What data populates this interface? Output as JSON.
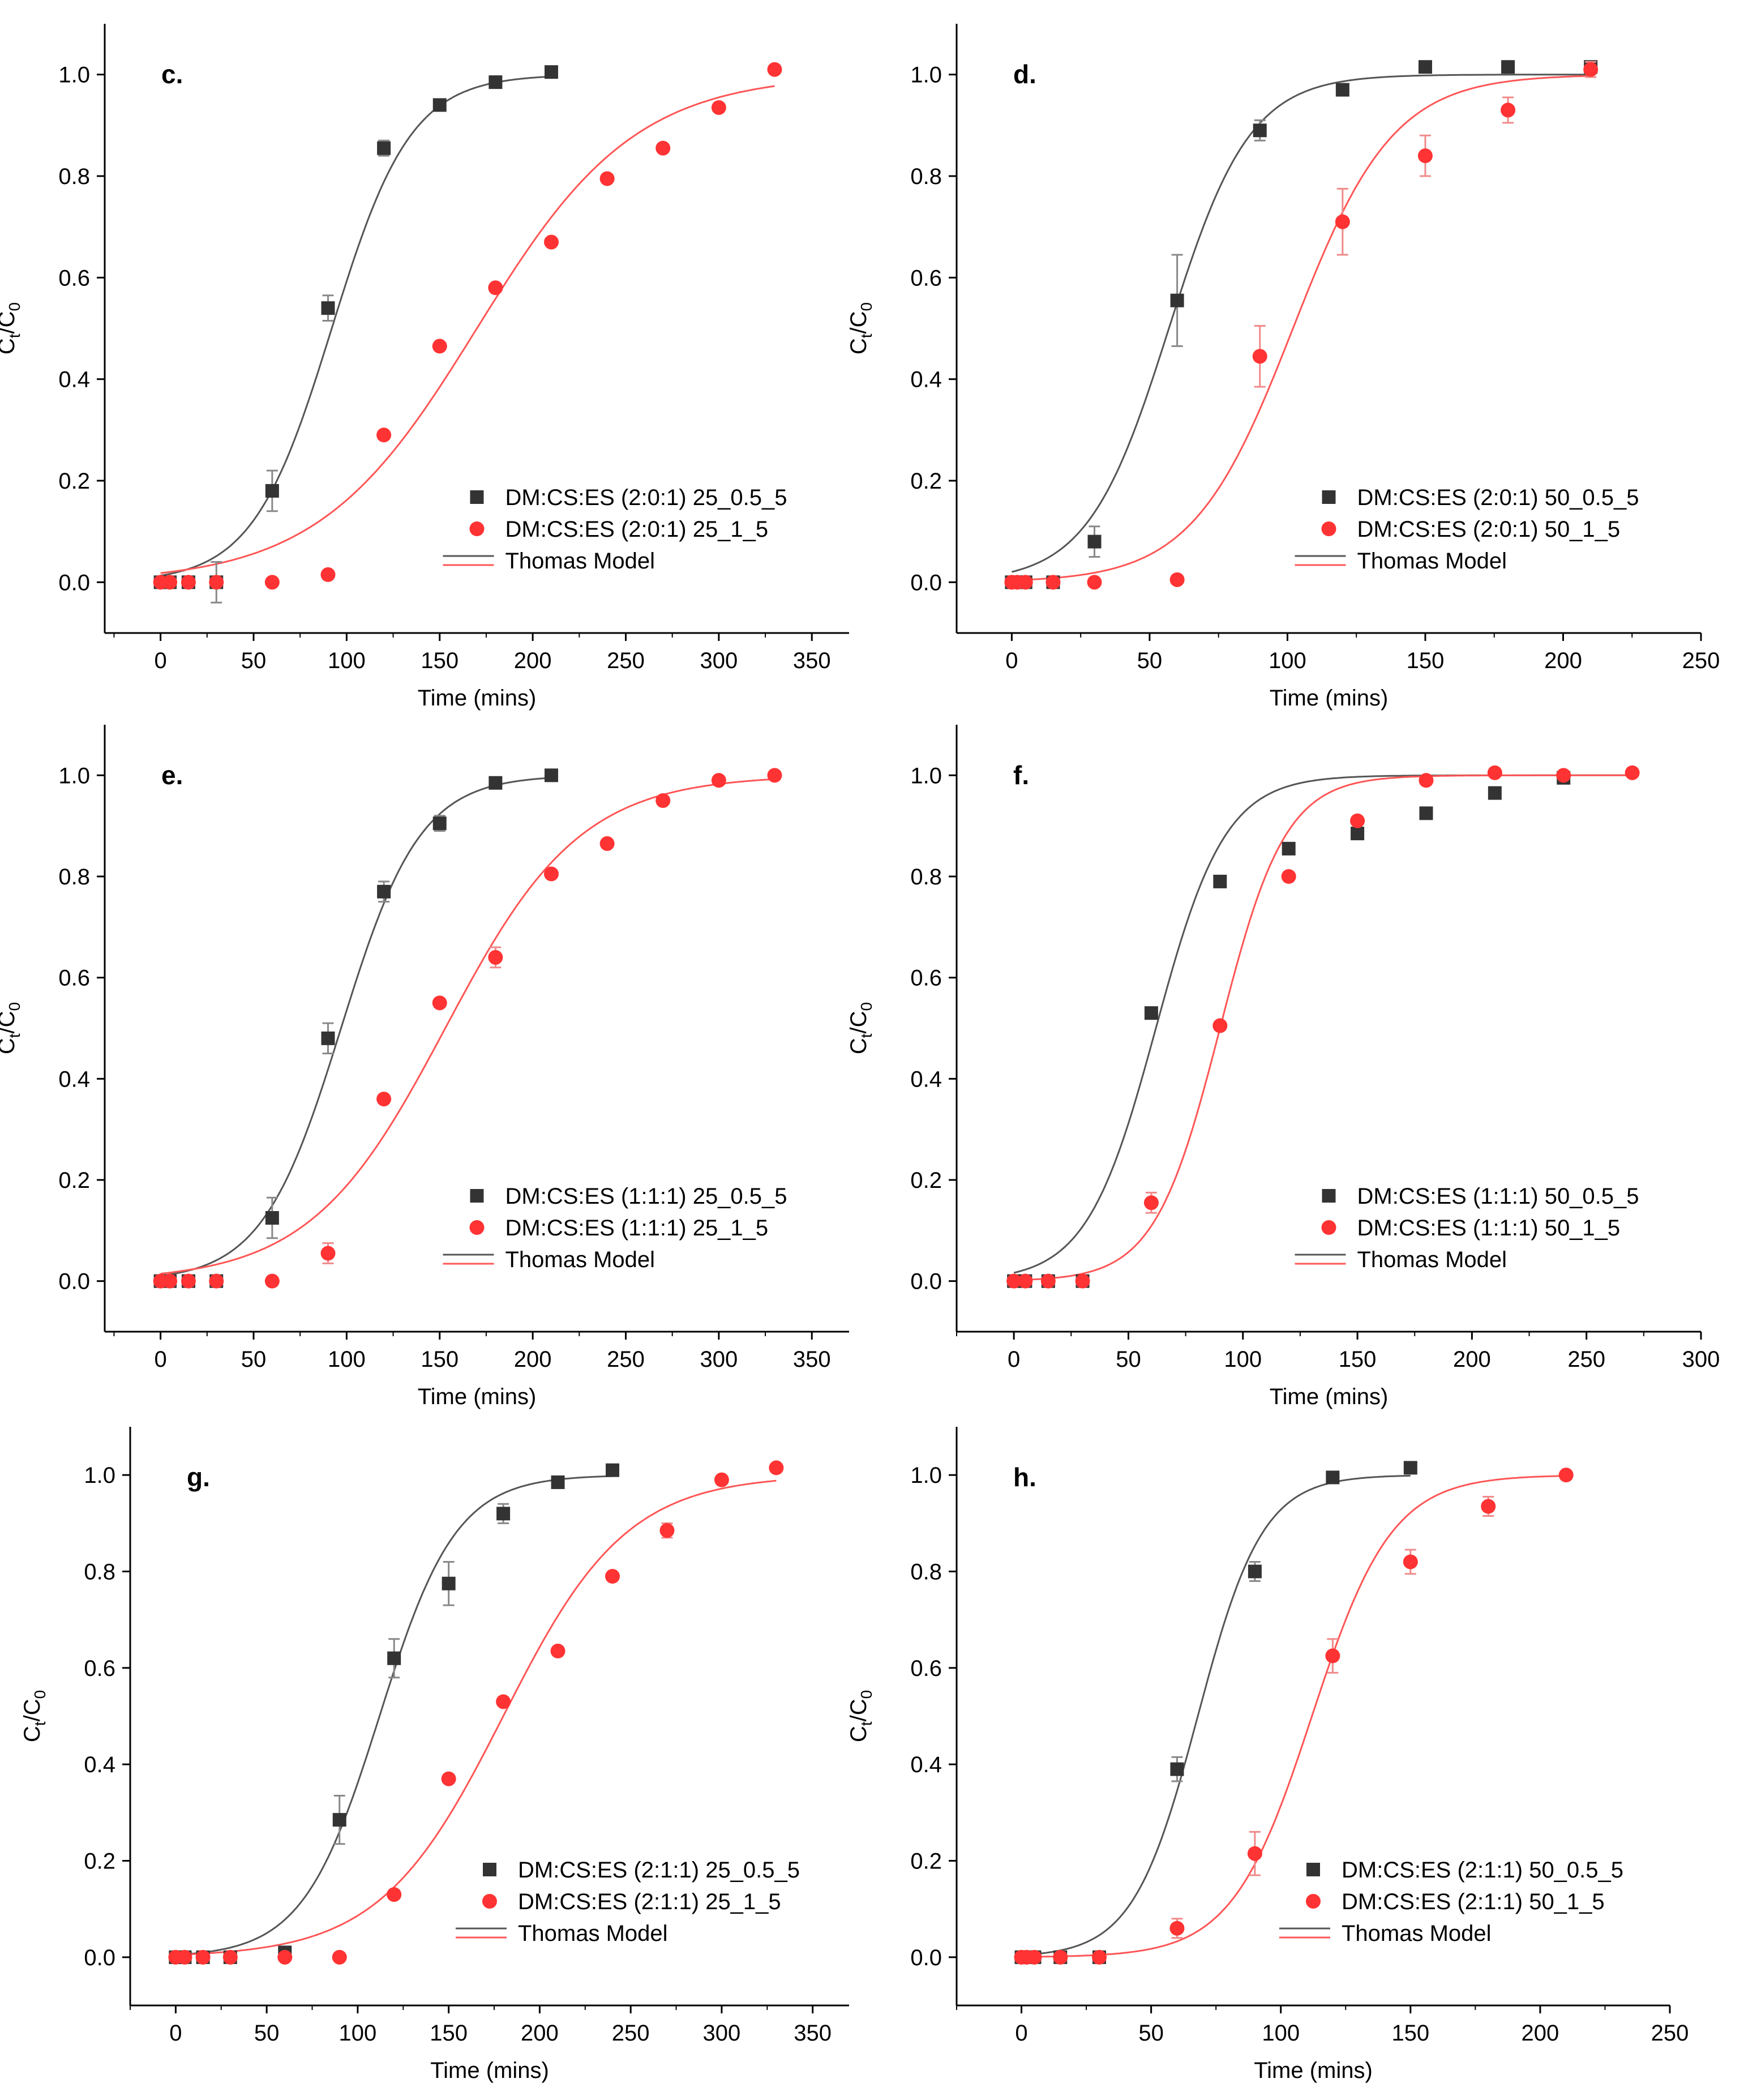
{
  "colors": {
    "black_series": "#333333",
    "red_series": "#ff3333",
    "black_fit": "#555555",
    "red_fit": "#ff5555",
    "error_black": "#888888",
    "error_red": "#f08a8a"
  },
  "shared": {
    "ylabel_main": "C",
    "ylabel_sub1": "t",
    "ylabel_sep": "/C",
    "ylabel_sub2": "0",
    "xlabel": "Time (mins)",
    "yticks": [
      "0.0",
      "0.2",
      "0.4",
      "0.6",
      "0.8",
      "1.0"
    ]
  },
  "chart_data": [
    {
      "type": "scatter",
      "panel": "c.",
      "title": "c.",
      "xlabel": "Time (mins)",
      "ylabel": "Ct/C0",
      "xlim": [
        -30,
        370
      ],
      "ylim": [
        -0.1,
        1.1
      ],
      "xticks": [
        0,
        50,
        100,
        150,
        200,
        250,
        300,
        350
      ],
      "yticks": [
        0,
        0.2,
        0.4,
        0.6,
        0.8,
        1.0
      ],
      "series": [
        {
          "name": "DM:CS:ES (2:0:1) 25_0.5_5",
          "marker": "square",
          "color": "#333333",
          "x": [
            0,
            5,
            15,
            30,
            60,
            90,
            120,
            150,
            180,
            210
          ],
          "y": [
            0,
            0,
            0,
            0,
            0.18,
            0.54,
            0.855,
            0.94,
            0.985,
            1.005
          ],
          "err": [
            0,
            0,
            0,
            0.04,
            0.04,
            0.025,
            0.015,
            0,
            0,
            0
          ]
        },
        {
          "name": "DM:CS:ES (2:0:1) 25_1_5",
          "marker": "circle",
          "color": "#ff3333",
          "x": [
            0,
            5,
            15,
            30,
            60,
            90,
            120,
            150,
            180,
            210,
            240,
            270,
            300,
            330
          ],
          "y": [
            0,
            0,
            0,
            0,
            0,
            0.015,
            0.29,
            0.465,
            0.58,
            0.67,
            0.795,
            0.855,
            0.935,
            1.01
          ],
          "err": [
            0,
            0,
            0,
            0,
            0,
            0,
            0,
            0,
            0,
            0,
            0,
            0,
            0,
            0
          ]
        }
      ],
      "fits": [
        {
          "name": "Thomas Model",
          "color": "#555555",
          "t50": 92,
          "k": 0.047,
          "x_end": 210
        },
        {
          "name": "Thomas Model",
          "color": "#ff5555",
          "t50": 170,
          "k": 0.0235,
          "x_end": 330
        }
      ],
      "legend": {
        "position": "bottom-right",
        "entries": [
          "DM:CS:ES (2:0:1) 25_0.5_5",
          "DM:CS:ES (2:0:1) 25_1_5",
          "Thomas Model"
        ]
      }
    },
    {
      "type": "scatter",
      "panel": "d.",
      "title": "d.",
      "xlabel": "Time (mins)",
      "ylabel": "Ct/C0",
      "xlim": [
        -20,
        250
      ],
      "ylim": [
        -0.1,
        1.1
      ],
      "xticks": [
        0,
        50,
        100,
        150,
        200,
        250
      ],
      "yticks": [
        0,
        0.2,
        0.4,
        0.6,
        0.8,
        1.0
      ],
      "series": [
        {
          "name": "DM:CS:ES (2:0:1) 50_0.5_5",
          "marker": "square",
          "color": "#333333",
          "x": [
            0,
            2,
            5,
            15,
            30,
            60,
            90,
            120,
            150,
            180,
            210
          ],
          "y": [
            0,
            0,
            0,
            0,
            0.08,
            0.555,
            0.89,
            0.97,
            1.015,
            1.015,
            1.015
          ],
          "err": [
            0,
            0,
            0,
            0,
            0.03,
            0.09,
            0.02,
            0,
            0,
            0,
            0
          ]
        },
        {
          "name": "DM:CS:ES (2:0:1) 50_1_5",
          "marker": "circle",
          "color": "#ff3333",
          "x": [
            0,
            2,
            5,
            15,
            30,
            60,
            90,
            120,
            150,
            180,
            210
          ],
          "y": [
            0,
            0,
            0,
            0,
            0,
            0.005,
            0.445,
            0.71,
            0.84,
            0.93,
            1.01
          ],
          "err": [
            0,
            0,
            0,
            0,
            0,
            0,
            0.06,
            0.065,
            0.04,
            0.025,
            0.015
          ]
        }
      ],
      "fits": [
        {
          "name": "Thomas Model",
          "color": "#555555",
          "t50": 57,
          "k": 0.068,
          "x_end": 210
        },
        {
          "name": "Thomas Model",
          "color": "#ff5555",
          "t50": 102,
          "k": 0.055,
          "x_end": 210
        }
      ],
      "legend": {
        "position": "bottom-right",
        "entries": [
          "DM:CS:ES (2:0:1) 50_0.5_5",
          "DM:CS:ES (2:0:1) 50_1_5",
          "Thomas Model"
        ]
      }
    },
    {
      "type": "scatter",
      "panel": "e.",
      "title": "e.",
      "xlabel": "Time (mins)",
      "ylabel": "Ct/C0",
      "xlim": [
        -30,
        370
      ],
      "ylim": [
        -0.1,
        1.1
      ],
      "xticks": [
        0,
        50,
        100,
        150,
        200,
        250,
        300,
        350
      ],
      "yticks": [
        0,
        0.2,
        0.4,
        0.6,
        0.8,
        1.0
      ],
      "series": [
        {
          "name": "DM:CS:ES (1:1:1) 25_0.5_5",
          "marker": "square",
          "color": "#333333",
          "x": [
            0,
            5,
            15,
            30,
            60,
            90,
            120,
            150,
            180,
            210
          ],
          "y": [
            0,
            0,
            0,
            0,
            0.125,
            0.48,
            0.77,
            0.905,
            0.985,
            1.0
          ],
          "err": [
            0,
            0,
            0,
            0,
            0.04,
            0.03,
            0.02,
            0.015,
            0,
            0
          ]
        },
        {
          "name": "DM:CS:ES (1:1:1) 25_1_5",
          "marker": "circle",
          "color": "#ff3333",
          "x": [
            0,
            5,
            15,
            30,
            60,
            90,
            120,
            150,
            180,
            210,
            240,
            270,
            300,
            330
          ],
          "y": [
            0,
            0,
            0,
            0,
            0,
            0.055,
            0.36,
            0.55,
            0.64,
            0.805,
            0.865,
            0.95,
            0.99,
            1.0
          ],
          "err": [
            0,
            0,
            0,
            0,
            0,
            0.02,
            0,
            0,
            0.02,
            0,
            0,
            0,
            0,
            0
          ]
        }
      ],
      "fits": [
        {
          "name": "Thomas Model",
          "color": "#555555",
          "t50": 97,
          "k": 0.047,
          "x_end": 210
        },
        {
          "name": "Thomas Model",
          "color": "#ff5555",
          "t50": 153,
          "k": 0.0275,
          "x_end": 330
        }
      ],
      "legend": {
        "position": "bottom-right",
        "entries": [
          "DM:CS:ES (1:1:1) 25_0.5_5",
          "DM:CS:ES (1:1:1) 25_1_5",
          "Thomas Model"
        ]
      }
    },
    {
      "type": "scatter",
      "panel": "f.",
      "title": "f.",
      "xlabel": "Time (mins)",
      "ylabel": "Ct/C0",
      "xlim": [
        -25,
        300
      ],
      "ylim": [
        -0.1,
        1.1
      ],
      "xticks": [
        0,
        50,
        100,
        150,
        200,
        250,
        300
      ],
      "yticks": [
        0,
        0.2,
        0.4,
        0.6,
        0.8,
        1.0
      ],
      "series": [
        {
          "name": "DM:CS:ES (1:1:1) 50_0.5_5",
          "marker": "square",
          "color": "#333333",
          "x": [
            0,
            5,
            15,
            30,
            60,
            90,
            120,
            150,
            180,
            210,
            240
          ],
          "y": [
            0,
            0,
            0,
            0,
            0.53,
            0.79,
            0.855,
            0.885,
            0.925,
            0.965,
            0.995
          ],
          "err": [
            0,
            0,
            0,
            0,
            0,
            0,
            0,
            0,
            0,
            0,
            0
          ]
        },
        {
          "name": "DM:CS:ES (1:1:1) 50_1_5",
          "marker": "circle",
          "color": "#ff3333",
          "x": [
            0,
            5,
            15,
            30,
            60,
            90,
            120,
            150,
            180,
            210,
            240,
            270
          ],
          "y": [
            0,
            0,
            0,
            0,
            0.155,
            0.505,
            0.8,
            0.91,
            0.99,
            1.005,
            1.0,
            1.005
          ],
          "err": [
            0,
            0,
            0,
            0,
            0.02,
            0,
            0,
            0,
            0,
            0,
            0,
            0
          ]
        }
      ],
      "fits": [
        {
          "name": "Thomas Model",
          "color": "#555555",
          "t50": 62,
          "k": 0.066,
          "x_end": 270
        },
        {
          "name": "Thomas Model",
          "color": "#ff5555",
          "t50": 90,
          "k": 0.07,
          "x_end": 270
        }
      ],
      "legend": {
        "position": "bottom-right",
        "entries": [
          "DM:CS:ES (1:1:1) 50_0.5_5",
          "DM:CS:ES (1:1:1) 50_1_5",
          "Thomas Model"
        ]
      }
    },
    {
      "type": "scatter",
      "panel": "g.",
      "title": "g.",
      "xlabel": "Time (mins)",
      "ylabel": "Ct/C0",
      "xlim": [
        -25,
        370
      ],
      "ylim": [
        -0.1,
        1.1
      ],
      "xticks": [
        0,
        50,
        100,
        150,
        200,
        250,
        300,
        350
      ],
      "yticks": [
        0,
        0.2,
        0.4,
        0.6,
        0.8,
        1.0
      ],
      "series": [
        {
          "name": "DM:CS:ES (2:1:1) 25_0.5_5",
          "marker": "square",
          "color": "#333333",
          "x": [
            0,
            5,
            15,
            30,
            60,
            90,
            120,
            150,
            180,
            210,
            240
          ],
          "y": [
            0,
            0,
            0,
            0,
            0.01,
            0.285,
            0.62,
            0.775,
            0.92,
            0.985,
            1.01
          ],
          "err": [
            0,
            0,
            0,
            0,
            0,
            0.05,
            0.04,
            0.045,
            0.02,
            0,
            0
          ]
        },
        {
          "name": "DM:CS:ES (2:1:1) 25_1_5",
          "marker": "circle",
          "color": "#ff3333",
          "x": [
            0,
            5,
            15,
            30,
            60,
            90,
            120,
            150,
            180,
            210,
            240,
            270,
            300,
            330
          ],
          "y": [
            0,
            0,
            0,
            0,
            0,
            0,
            0.13,
            0.37,
            0.53,
            0.635,
            0.79,
            0.885,
            0.99,
            1.015
          ],
          "err": [
            0,
            0,
            0,
            0,
            0,
            0,
            0,
            0,
            0,
            0,
            0,
            0.015,
            0,
            0
          ]
        }
      ],
      "fits": [
        {
          "name": "Thomas Model",
          "color": "#555555",
          "t50": 112,
          "k": 0.0475,
          "x_end": 240
        },
        {
          "name": "Thomas Model",
          "color": "#ff5555",
          "t50": 180,
          "k": 0.0295,
          "x_end": 330
        }
      ],
      "legend": {
        "position": "bottom-right",
        "entries": [
          "DM:CS:ES (2:1:1) 25_0.5_5",
          "DM:CS:ES (2:1:1) 25_1_5",
          "Thomas Model"
        ]
      }
    },
    {
      "type": "scatter",
      "panel": "h.",
      "title": "h.",
      "xlabel": "Time (mins)",
      "ylabel": "Ct/C0",
      "xlim": [
        -25,
        250
      ],
      "ylim": [
        -0.1,
        1.1
      ],
      "xticks": [
        0,
        50,
        100,
        150,
        200,
        250
      ],
      "yticks": [
        0,
        0.2,
        0.4,
        0.6,
        0.8,
        1.0
      ],
      "series": [
        {
          "name": "DM:CS:ES (2:1:1) 50_0.5_5",
          "marker": "square",
          "color": "#333333",
          "x": [
            0,
            2,
            5,
            15,
            30,
            60,
            90,
            120,
            150
          ],
          "y": [
            0,
            0,
            0,
            0,
            0,
            0.39,
            0.8,
            0.995,
            1.015
          ],
          "err": [
            0,
            0,
            0,
            0,
            0,
            0.025,
            0.02,
            0,
            0
          ]
        },
        {
          "name": "DM:CS:ES (2:1:1) 50_1_5",
          "marker": "circle",
          "color": "#ff3333",
          "x": [
            0,
            2,
            5,
            15,
            30,
            60,
            90,
            120,
            150,
            180,
            210
          ],
          "y": [
            0,
            0,
            0,
            0,
            0,
            0.06,
            0.215,
            0.625,
            0.82,
            0.935,
            1.0
          ],
          "err": [
            0,
            0,
            0,
            0,
            0,
            0.02,
            0.045,
            0.035,
            0.025,
            0.02,
            0
          ]
        }
      ],
      "fits": [
        {
          "name": "Thomas Model",
          "color": "#555555",
          "t50": 68,
          "k": 0.08,
          "x_end": 150
        },
        {
          "name": "Thomas Model",
          "color": "#ff5555",
          "t50": 112,
          "k": 0.065,
          "x_end": 210
        }
      ],
      "legend": {
        "position": "bottom-right",
        "entries": [
          "DM:CS:ES (2:1:1) 50_0.5_5",
          "DM:CS:ES (2:1:1) 50_1_5",
          "Thomas Model"
        ]
      }
    }
  ]
}
